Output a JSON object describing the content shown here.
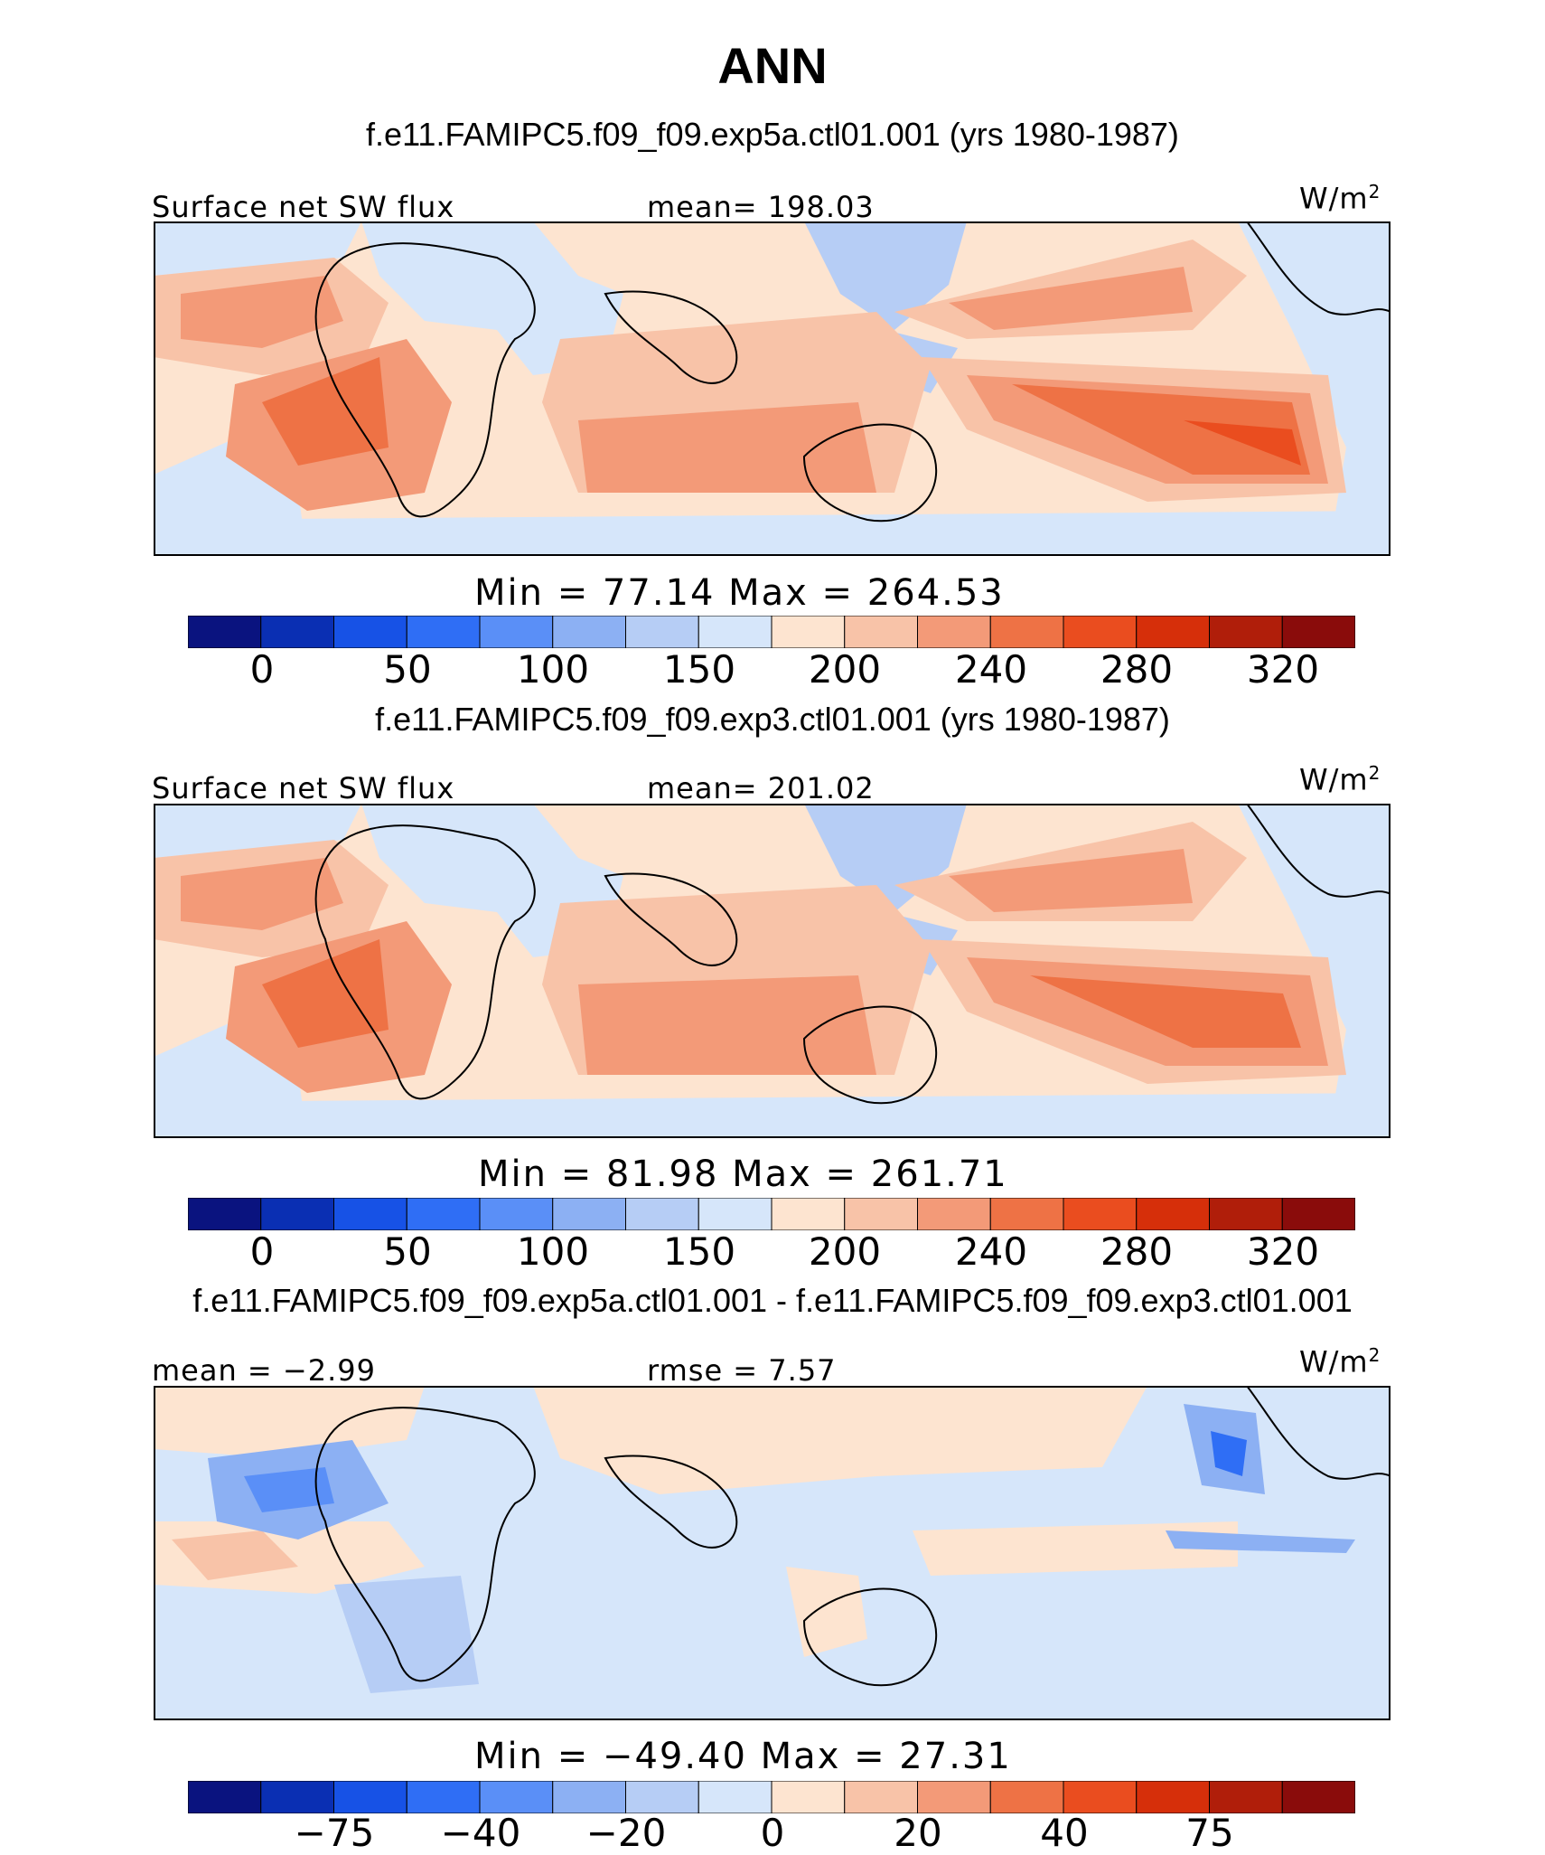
{
  "title": "ANN",
  "colors": {
    "scale_full": [
      "#0a137f",
      "#0a2fb3",
      "#1752e6",
      "#2f6ef5",
      "#5a8ff7",
      "#8cb0f3",
      "#b6cdf5",
      "#d6e6fa",
      "#fde4d0",
      "#f8c3a8",
      "#f39a78",
      "#ee7245",
      "#ea4d1f",
      "#d62f0a",
      "#b01e0a",
      "#8a0c0b"
    ]
  },
  "panels": [
    {
      "case_label": "f.e11.FAMIPC5.f09_f09.exp5a.ctl01.001 (yrs 1980-1987)",
      "left_label": "Surface net SW flux",
      "center_label": "mean= 198.03",
      "units": "W/m",
      "units_sup": "2",
      "minmax": "Min =  77.14 Max = 264.53",
      "colorbar_ticks": [
        "0",
        "50",
        "100",
        "150",
        "200",
        "240",
        "280",
        "320"
      ],
      "field": "absolute"
    },
    {
      "case_label": "f.e11.FAMIPC5.f09_f09.exp3.ctl01.001 (yrs 1980-1987)",
      "left_label": "Surface net SW flux",
      "center_label": "mean= 201.02",
      "units": "W/m",
      "units_sup": "2",
      "minmax": "Min =  81.98 Max = 261.71",
      "colorbar_ticks": [
        "0",
        "50",
        "100",
        "150",
        "200",
        "240",
        "280",
        "320"
      ],
      "field": "absolute"
    },
    {
      "case_label": "f.e11.FAMIPC5.f09_f09.exp5a.ctl01.001 - f.e11.FAMIPC5.f09_f09.exp3.ctl01.001",
      "left_label": "mean =  −2.99",
      "center_label": "rmse =   7.57",
      "units": "W/m",
      "units_sup": "2",
      "minmax": "Min = −49.40 Max =  27.31",
      "colorbar_ticks": [
        "−75",
        "−40",
        "−20",
        "0",
        "20",
        "40",
        "75"
      ],
      "field": "difference"
    }
  ]
}
